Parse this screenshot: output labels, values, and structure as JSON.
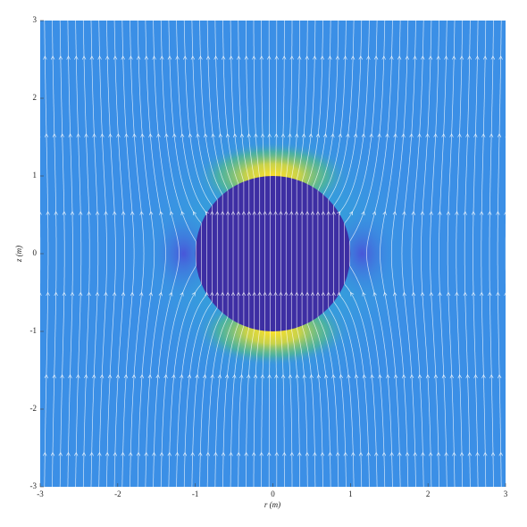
{
  "chart_data": {
    "type": "streamplot",
    "x_label": "r (m)",
    "y_label": "z (m)",
    "xlim": [
      -3,
      3
    ],
    "ylim": [
      -3,
      3
    ],
    "xticks": [
      -3,
      -2,
      -1,
      0,
      1,
      2,
      3
    ],
    "yticks": [
      -3,
      -2,
      -1,
      0,
      1,
      2,
      3
    ]
  }
}
